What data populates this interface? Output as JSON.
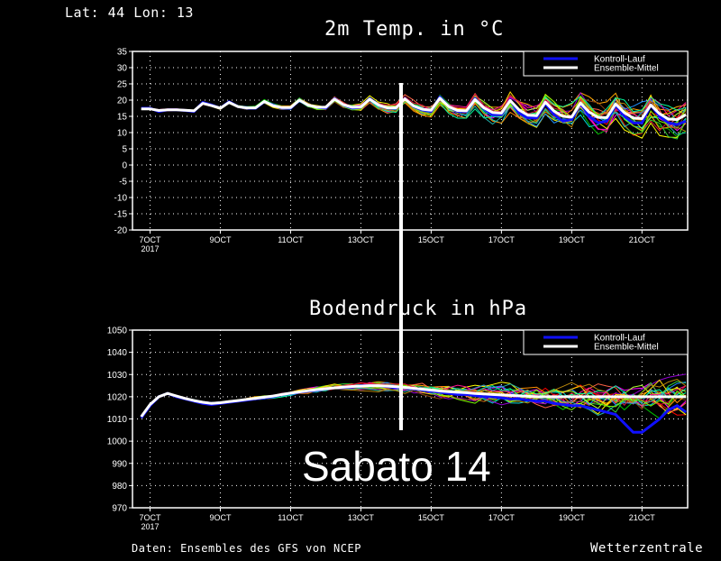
{
  "header": {
    "location": "Lat: 44 Lon: 13"
  },
  "overlay": {
    "day_label": "Sabato 14"
  },
  "footer": {
    "source": "Daten: Ensembles des GFS von NCEP",
    "brand": "Wetterzentrale"
  },
  "colors": {
    "background": "#000000",
    "control_run": "#1010ff",
    "ensemble_mean": "#ffffff",
    "grid": "#ffffff",
    "marker_line": "#ffffff"
  },
  "chart_data": [
    {
      "type": "line",
      "title": "2m Temp. in °C",
      "xlabel": "",
      "ylabel": "",
      "ylim": [
        -20,
        35
      ],
      "yticks": [
        -20,
        -15,
        -10,
        -5,
        0,
        5,
        10,
        15,
        20,
        25,
        30,
        35
      ],
      "xlim": [
        6.5,
        22.3
      ],
      "xticks": [
        {
          "x": 7,
          "label": "7OCT",
          "sub": "2017"
        },
        {
          "x": 9,
          "label": "9OCT"
        },
        {
          "x": 11,
          "label": "11OCT"
        },
        {
          "x": 13,
          "label": "13OCT"
        },
        {
          "x": 15,
          "label": "15OCT"
        },
        {
          "x": 17,
          "label": "17OCT"
        },
        {
          "x": 19,
          "label": "19OCT"
        },
        {
          "x": 21,
          "label": "21OCT"
        }
      ],
      "grid": true,
      "legend_position": "top-right",
      "x": [
        6.75,
        7.0,
        7.25,
        7.5,
        7.75,
        8.0,
        8.25,
        8.5,
        8.75,
        9.0,
        9.25,
        9.5,
        9.75,
        10.0,
        10.25,
        10.5,
        10.75,
        11.0,
        11.25,
        11.5,
        11.75,
        12.0,
        12.25,
        12.5,
        12.75,
        13.0,
        13.25,
        13.5,
        13.75,
        14.0,
        14.25,
        14.5,
        14.75,
        15.0,
        15.25,
        15.5,
        15.75,
        16.0,
        16.25,
        16.5,
        16.75,
        17.0,
        17.25,
        17.5,
        17.75,
        18.0,
        18.25,
        18.5,
        18.75,
        19.0,
        19.25,
        19.5,
        19.75,
        20.0,
        20.25,
        20.5,
        20.75,
        21.0,
        21.25,
        21.5,
        21.75,
        22.0,
        22.25
      ],
      "series": [
        {
          "name": "Kontroll-Lauf",
          "color": "#1010ff",
          "width": 3,
          "values": [
            17.5,
            17.5,
            16.5,
            17,
            17,
            16.8,
            16.5,
            19.3,
            18.5,
            17.5,
            19.5,
            18,
            17.5,
            17.5,
            19.5,
            18.5,
            17.5,
            17.5,
            20,
            18.5,
            17.8,
            17.5,
            20.5,
            18.5,
            17.5,
            17.8,
            20.5,
            18.5,
            17.5,
            17.5,
            20.5,
            18,
            17,
            16.5,
            21,
            18,
            16.5,
            16.5,
            20.5,
            17.5,
            15.5,
            15.5,
            20,
            16,
            14.5,
            14.5,
            19,
            15.5,
            13.5,
            14,
            19,
            15,
            13,
            13.5,
            18.5,
            15,
            13,
            13,
            18.5,
            15,
            13,
            12.5,
            13.5
          ]
        },
        {
          "name": "Ensemble-Mittel",
          "color": "#ffffff",
          "width": 3,
          "values": [
            17.3,
            17.3,
            16.8,
            17,
            17,
            16.9,
            16.7,
            19,
            18.3,
            17.5,
            19.3,
            18,
            17.6,
            17.6,
            19.6,
            18.3,
            17.7,
            17.7,
            20,
            18.5,
            17.8,
            17.8,
            20.3,
            18.6,
            17.8,
            17.9,
            20.3,
            18.5,
            17.6,
            17.6,
            20.4,
            18.2,
            17.2,
            16.9,
            20.6,
            18,
            16.8,
            16.7,
            20.2,
            17.6,
            16.2,
            16,
            19.9,
            17,
            15.4,
            15.2,
            19.4,
            16.6,
            15,
            14.8,
            19.1,
            16.3,
            14.7,
            14.6,
            18.8,
            16.1,
            14.5,
            14.3,
            18.5,
            15.8,
            14.2,
            14,
            15.5
          ]
        }
      ]
    },
    {
      "type": "line",
      "title": "Bodendruck in hPa",
      "xlabel": "",
      "ylabel": "",
      "ylim": [
        970,
        1050
      ],
      "yticks": [
        970,
        980,
        990,
        1000,
        1010,
        1020,
        1030,
        1040,
        1050
      ],
      "xlim": [
        6.5,
        22.3
      ],
      "xticks": [
        {
          "x": 7,
          "label": "7OCT",
          "sub": "2017"
        },
        {
          "x": 9,
          "label": "9OCT"
        },
        {
          "x": 11,
          "label": "11OCT"
        },
        {
          "x": 13,
          "label": "13OCT"
        },
        {
          "x": 15,
          "label": "15OCT"
        },
        {
          "x": 17,
          "label": "17OCT"
        },
        {
          "x": 19,
          "label": "19OCT"
        },
        {
          "x": 21,
          "label": "21OCT"
        }
      ],
      "grid": true,
      "legend_position": "top-right",
      "x": [
        6.75,
        7.0,
        7.25,
        7.5,
        7.75,
        8.0,
        8.25,
        8.5,
        8.75,
        9.0,
        9.25,
        9.5,
        9.75,
        10.0,
        10.25,
        10.5,
        10.75,
        11.0,
        11.25,
        11.5,
        11.75,
        12.0,
        12.25,
        12.5,
        12.75,
        13.0,
        13.25,
        13.5,
        13.75,
        14.0,
        14.25,
        14.5,
        14.75,
        15.0,
        15.25,
        15.5,
        15.75,
        16.0,
        16.25,
        16.5,
        16.75,
        17.0,
        17.25,
        17.5,
        17.75,
        18.0,
        18.25,
        18.5,
        18.75,
        19.0,
        19.25,
        19.5,
        19.75,
        20.0,
        20.25,
        20.5,
        20.75,
        21.0,
        21.25,
        21.5,
        21.75,
        22.0,
        22.25
      ],
      "series": [
        {
          "name": "Kontroll-Lauf",
          "color": "#1010ff",
          "width": 3,
          "values": [
            1010.5,
            1016,
            1020,
            1021.5,
            1020,
            1019,
            1018,
            1017,
            1016.5,
            1017,
            1017.5,
            1018,
            1018.5,
            1019,
            1019.5,
            1020,
            1021,
            1021.5,
            1022,
            1022.5,
            1023,
            1023.5,
            1024,
            1024,
            1024.5,
            1025,
            1025,
            1025,
            1024.5,
            1024,
            1024,
            1023.5,
            1023,
            1022.5,
            1022,
            1021.5,
            1021,
            1021,
            1020.5,
            1020,
            1020,
            1019.5,
            1019,
            1019,
            1018.5,
            1018,
            1018,
            1017,
            1016.5,
            1016,
            1016,
            1015,
            1014,
            1013,
            1012,
            1008,
            1004,
            1004,
            1007,
            1010,
            1014,
            1016,
            1013
          ]
        },
        {
          "name": "Ensemble-Mittel",
          "color": "#ffffff",
          "width": 3,
          "values": [
            1011,
            1016.5,
            1020,
            1021.5,
            1020.3,
            1019.2,
            1018.3,
            1017.5,
            1017,
            1017.3,
            1017.8,
            1018.3,
            1018.8,
            1019.3,
            1019.8,
            1020.3,
            1021,
            1021.6,
            1022.2,
            1022.7,
            1023.2,
            1023.6,
            1024,
            1024.3,
            1024.6,
            1024.8,
            1025,
            1025,
            1024.8,
            1024.5,
            1024.2,
            1023.8,
            1023.4,
            1023,
            1022.6,
            1022.3,
            1022,
            1021.8,
            1021.5,
            1021.3,
            1021,
            1020.8,
            1020.6,
            1020.4,
            1020.2,
            1020,
            1020,
            1020,
            1020,
            1020,
            1020,
            1020,
            1020,
            1020,
            1020,
            1020,
            1020,
            1020,
            1020,
            1020,
            1020,
            1020,
            1020
          ]
        }
      ]
    }
  ]
}
